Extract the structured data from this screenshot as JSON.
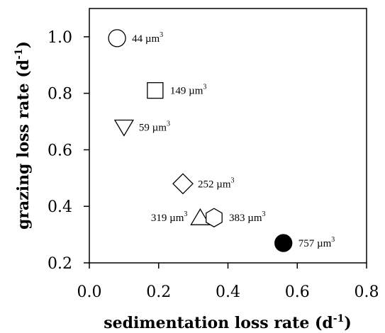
{
  "chart_data": {
    "type": "scatter",
    "title": "",
    "xlabel": "sedimentation loss rate (d",
    "xlabel_sup": "-1",
    "xlabel_end": ")",
    "ylabel": "grazing loss rate (d",
    "ylabel_sup": "-1",
    "ylabel_end": ")",
    "xlim": [
      0.0,
      0.8
    ],
    "ylim": [
      0.2,
      1.1
    ],
    "xticks": [
      0.0,
      0.2,
      0.4,
      0.6,
      0.8
    ],
    "xtick_labels": [
      "0.0",
      "0.2",
      "0.4",
      "0.6",
      "0.8"
    ],
    "yticks": [
      0.2,
      0.4,
      0.6,
      0.8,
      1.0
    ],
    "ytick_labels": [
      "0.2",
      "0.4",
      "0.6",
      "0.8",
      "1.0"
    ],
    "unit": "µm",
    "unit_sup": "3",
    "grid": false,
    "points": [
      {
        "x": 0.08,
        "y": 0.995,
        "marker": "circle",
        "fill": "none",
        "label": "44"
      },
      {
        "x": 0.19,
        "y": 0.81,
        "marker": "square",
        "fill": "none",
        "label": "149"
      },
      {
        "x": 0.1,
        "y": 0.68,
        "marker": "triangle-down",
        "fill": "none",
        "label": "59"
      },
      {
        "x": 0.27,
        "y": 0.48,
        "marker": "diamond",
        "fill": "none",
        "label": "252"
      },
      {
        "x": 0.32,
        "y": 0.36,
        "marker": "triangle-up",
        "fill": "none",
        "label": "319"
      },
      {
        "x": 0.36,
        "y": 0.36,
        "marker": "hexagon",
        "fill": "none",
        "label": "383"
      },
      {
        "x": 0.56,
        "y": 0.27,
        "marker": "circle",
        "fill": "#000000",
        "label": "757"
      }
    ]
  }
}
